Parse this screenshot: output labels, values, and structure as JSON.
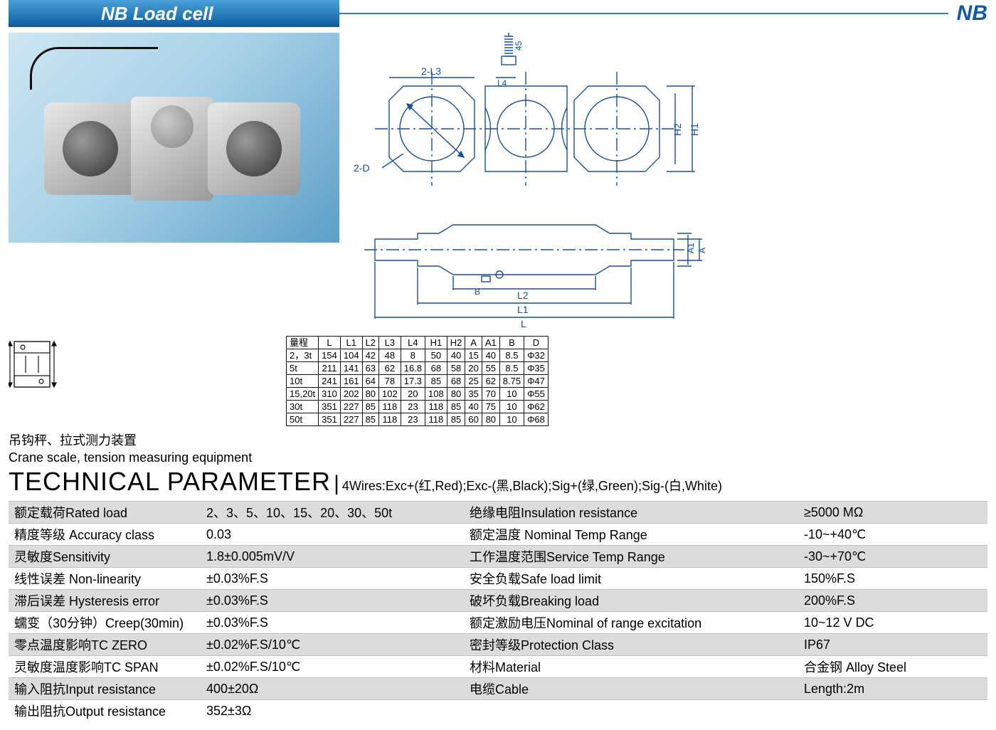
{
  "header": {
    "strip_bg_gradient": [
      "#4aa0d8",
      "#2b7fbd",
      "#0e5a9e"
    ],
    "title": "NB   Load cell",
    "right_label": "NB",
    "right_color": "#0e5aa7"
  },
  "photo": {
    "bg_gradient": [
      "#cde6f2",
      "#a9d2e8",
      "#5c9fc7"
    ],
    "part_gradient": [
      "#e8e8e8",
      "#9a9a9a"
    ]
  },
  "drawing": {
    "line_color": "#1a4fa0",
    "labels": {
      "two_L3": "2-L3",
      "two_D": "2-D",
      "L4": "L4",
      "forty_five": "45",
      "H2": "H2",
      "H1": "H1",
      "A1": "A1",
      "A": "A",
      "B": "B",
      "L2": "L2",
      "L1": "L1",
      "L": "L"
    }
  },
  "dim_table": {
    "headers": [
      "量程",
      "L",
      "L1",
      "L2",
      "L3",
      "L4",
      "H1",
      "H2",
      "A",
      "A1",
      "B",
      "D"
    ],
    "rows": [
      [
        "2，3t",
        "154",
        "104",
        "42",
        "48",
        "8",
        "50",
        "40",
        "15",
        "40",
        "8.5",
        "Φ32"
      ],
      [
        "5t",
        "211",
        "141",
        "63",
        "62",
        "16.8",
        "68",
        "58",
        "20",
        "55",
        "8.5",
        "Φ35"
      ],
      [
        "10t",
        "241",
        "161",
        "64",
        "78",
        "17.3",
        "85",
        "68",
        "25",
        "62",
        "8.75",
        "Φ47"
      ],
      [
        "15,20t",
        "310",
        "202",
        "80",
        "102",
        "20",
        "108",
        "80",
        "35",
        "70",
        "10",
        "Φ55"
      ],
      [
        "30t",
        "351",
        "227",
        "85",
        "118",
        "23",
        "118",
        "85",
        "40",
        "75",
        "10",
        "Φ62"
      ],
      [
        "50t",
        "351",
        "227",
        "85",
        "118",
        "23",
        "118",
        "85",
        "60",
        "80",
        "10",
        "Φ68"
      ]
    ]
  },
  "desc": {
    "cn": "吊钩秤、拉式测力装置",
    "en": "Crane scale, tension measuring equipment"
  },
  "tech": {
    "title": "TECHNICAL PARAMETER",
    "wires": "4Wires:Exc+(红,Red);Exc-(黑,Black);Sig+(绿,Green);Sig-(白,White)"
  },
  "params": {
    "row_odd_bg": "#dcdcdc",
    "row_even_bg": "#ffffff",
    "rows": [
      {
        "l": "额定载荷Rated load",
        "v": "2、3、5、10、15、20、30、50t",
        "l2": "绝缘电阻Insulation resistance",
        "v2": "≥5000 MΩ"
      },
      {
        "l": "精度等级 Accuracy class",
        "v": "0.03",
        "l2": "额定温度 Nominal Temp Range",
        "v2": "-10~+40℃"
      },
      {
        "l": "灵敏度Sensitivity",
        "v": "1.8±0.005mV/V",
        "l2": "工作温度范围Service Temp Range",
        "v2": "-30~+70℃"
      },
      {
        "l": "线性误差 Non-linearity",
        "v": "±0.03%F.S",
        "l2": "安全负载Safe load limit",
        "v2": "150%F.S"
      },
      {
        "l": "滞后误差 Hysteresis error",
        "v": "±0.03%F.S",
        "l2": "破坏负载Breaking load",
        "v2": "200%F.S"
      },
      {
        "l": "蠕变（30分钟）Creep(30min)",
        "v": "±0.03%F.S",
        "l2": "额定激励电压Nominal of range excitation",
        "v2": "10~12 V DC"
      },
      {
        "l": "零点温度影响TC ZERO",
        "v": "±0.02%F.S/10℃",
        "l2": "密封等级Protection Class",
        "v2": "IP67"
      },
      {
        "l": "灵敏度温度影响TC SPAN",
        "v": "±0.02%F.S/10℃",
        "l2": "材料Material",
        "v2": "合金钢 Alloy Steel"
      },
      {
        "l": "输入阻抗Input resistance",
        "v": "400±20Ω",
        "l2": "电缆Cable",
        "v2": "Length:2m"
      },
      {
        "l": "输出阻抗Output resistance",
        "v": "352±3Ω",
        "l2": "",
        "v2": ""
      }
    ]
  }
}
